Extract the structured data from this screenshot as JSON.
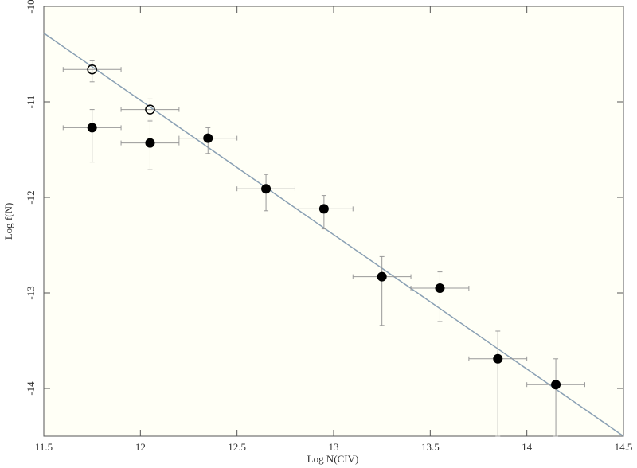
{
  "chart_data": {
    "type": "scatter",
    "xlabel": "Log N(CIV)",
    "ylabel": "Log f(N)",
    "xlim": [
      11.5,
      14.5
    ],
    "ylim": [
      -14.5,
      -10
    ],
    "xticks": [
      11.5,
      12,
      12.5,
      13,
      13.5,
      14,
      14.5
    ],
    "yticks": [
      -14,
      -13,
      -12,
      -11,
      -10
    ],
    "background": "#fffff6",
    "series": [
      {
        "marker": "filled",
        "color": "#000000",
        "x": [
          11.75,
          12.05,
          12.35,
          12.65,
          12.95,
          13.25,
          13.55,
          13.85,
          14.15
        ],
        "y": [
          -11.27,
          -11.43,
          -11.38,
          -11.91,
          -12.12,
          -12.83,
          -12.95,
          -13.69,
          -13.96
        ],
        "xerr": [
          0.15,
          0.15,
          0.15,
          0.15,
          0.15,
          0.15,
          0.15,
          0.15,
          0.15
        ],
        "yerr_low": [
          0.36,
          0.28,
          0.16,
          0.23,
          0.21,
          0.51,
          0.35,
          0.81,
          0.54
        ],
        "yerr_high": [
          0.19,
          0.23,
          0.11,
          0.15,
          0.14,
          0.21,
          0.17,
          0.29,
          0.27
        ]
      },
      {
        "marker": "open",
        "color": "#000000",
        "x": [
          11.75,
          12.05
        ],
        "y": [
          -10.66,
          -11.08
        ],
        "xerr": [
          0.15,
          0.15
        ],
        "yerr_low": [
          0.13,
          0.1
        ],
        "yerr_high": [
          0.09,
          0.11
        ]
      }
    ],
    "fit": {
      "color": "#8aa0b4",
      "x": [
        11.5,
        14.5
      ],
      "y": [
        -10.28,
        -14.5
      ]
    },
    "errorbar_color": "#999999"
  }
}
